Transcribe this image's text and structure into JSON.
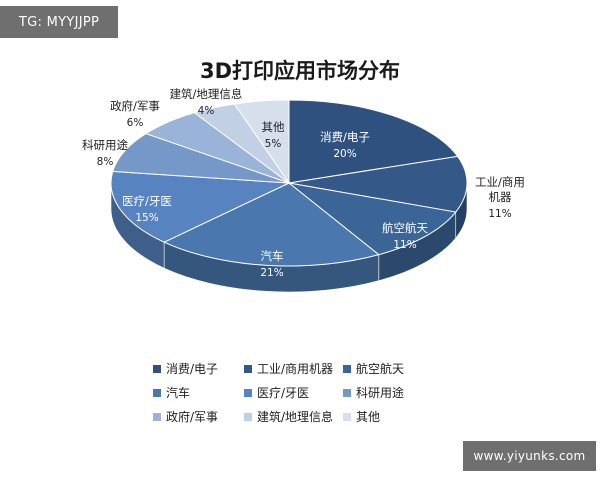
{
  "watermarks": {
    "top_left": "TG: MYYJJPP",
    "bottom_right": "www.yiyunks.com"
  },
  "chart_data": {
    "type": "pie",
    "title": "3D打印应用市场分布",
    "labels": [
      "消费/电子",
      "工业/商用机器",
      "航空航天",
      "汽车",
      "医疗/牙医",
      "科研用途",
      "政府/军事",
      "建筑/地理信息",
      "其他"
    ],
    "values": [
      20,
      11,
      11,
      21,
      15,
      8,
      6,
      4,
      5
    ],
    "value_labels": [
      "20%",
      "11%",
      "11%",
      "21%",
      "15%",
      "8%",
      "6%",
      "4%",
      "5%"
    ],
    "colors": [
      "#2f5180",
      "#345989",
      "#3c6597",
      "#4a77ad",
      "#5784c0",
      "#7598c9",
      "#9ab3d8",
      "#c2d0e6",
      "#d7dfec"
    ],
    "legend_position": "bottom",
    "style": "3d"
  }
}
